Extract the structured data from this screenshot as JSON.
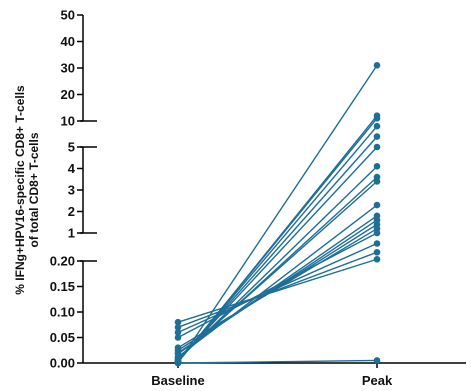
{
  "chart_data": {
    "type": "line",
    "title": "",
    "ylabel_line1": "% IFNg+HPV16-specific CD8+ T-cells",
    "ylabel_line2": "of total CD8+ T-cells",
    "categories": [
      "Baseline",
      "Peak"
    ],
    "y_axis": {
      "broken": true,
      "segments": [
        {
          "range": [
            0,
            0.2
          ],
          "ticks": [
            "0.00",
            "0.05",
            "0.10",
            "0.15",
            "0.20"
          ]
        },
        {
          "range": [
            1,
            5
          ],
          "ticks": [
            "1",
            "2",
            "3",
            "4",
            "5"
          ]
        },
        {
          "range": [
            10,
            50
          ],
          "ticks": [
            "10",
            "20",
            "30",
            "40",
            "50"
          ]
        }
      ]
    },
    "series_color": "#1f6e96",
    "pairs": [
      {
        "baseline": 0.08,
        "peak": 0.25
      },
      {
        "baseline": 0.07,
        "peak": 0.45
      },
      {
        "baseline": 0.06,
        "peak": 0.7
      },
      {
        "baseline": 0.05,
        "peak": 1.0
      },
      {
        "baseline": 0.03,
        "peak": 1.2
      },
      {
        "baseline": 0.025,
        "peak": 1.4
      },
      {
        "baseline": 0.02,
        "peak": 1.6
      },
      {
        "baseline": 0.018,
        "peak": 1.8
      },
      {
        "baseline": 0.012,
        "peak": 2.3
      },
      {
        "baseline": 0.01,
        "peak": 3.4
      },
      {
        "baseline": 0.008,
        "peak": 3.6
      },
      {
        "baseline": 0.006,
        "peak": 4.1
      },
      {
        "baseline": 0.005,
        "peak": 5.0
      },
      {
        "baseline": 0.004,
        "peak": 7.0
      },
      {
        "baseline": 0.003,
        "peak": 9.0
      },
      {
        "baseline": 0.002,
        "peak": 11.0
      },
      {
        "baseline": 0.001,
        "peak": 12.0
      },
      {
        "baseline": 0.0,
        "peak": 31.0
      },
      {
        "baseline": 0.0,
        "peak": 0.005
      }
    ]
  }
}
